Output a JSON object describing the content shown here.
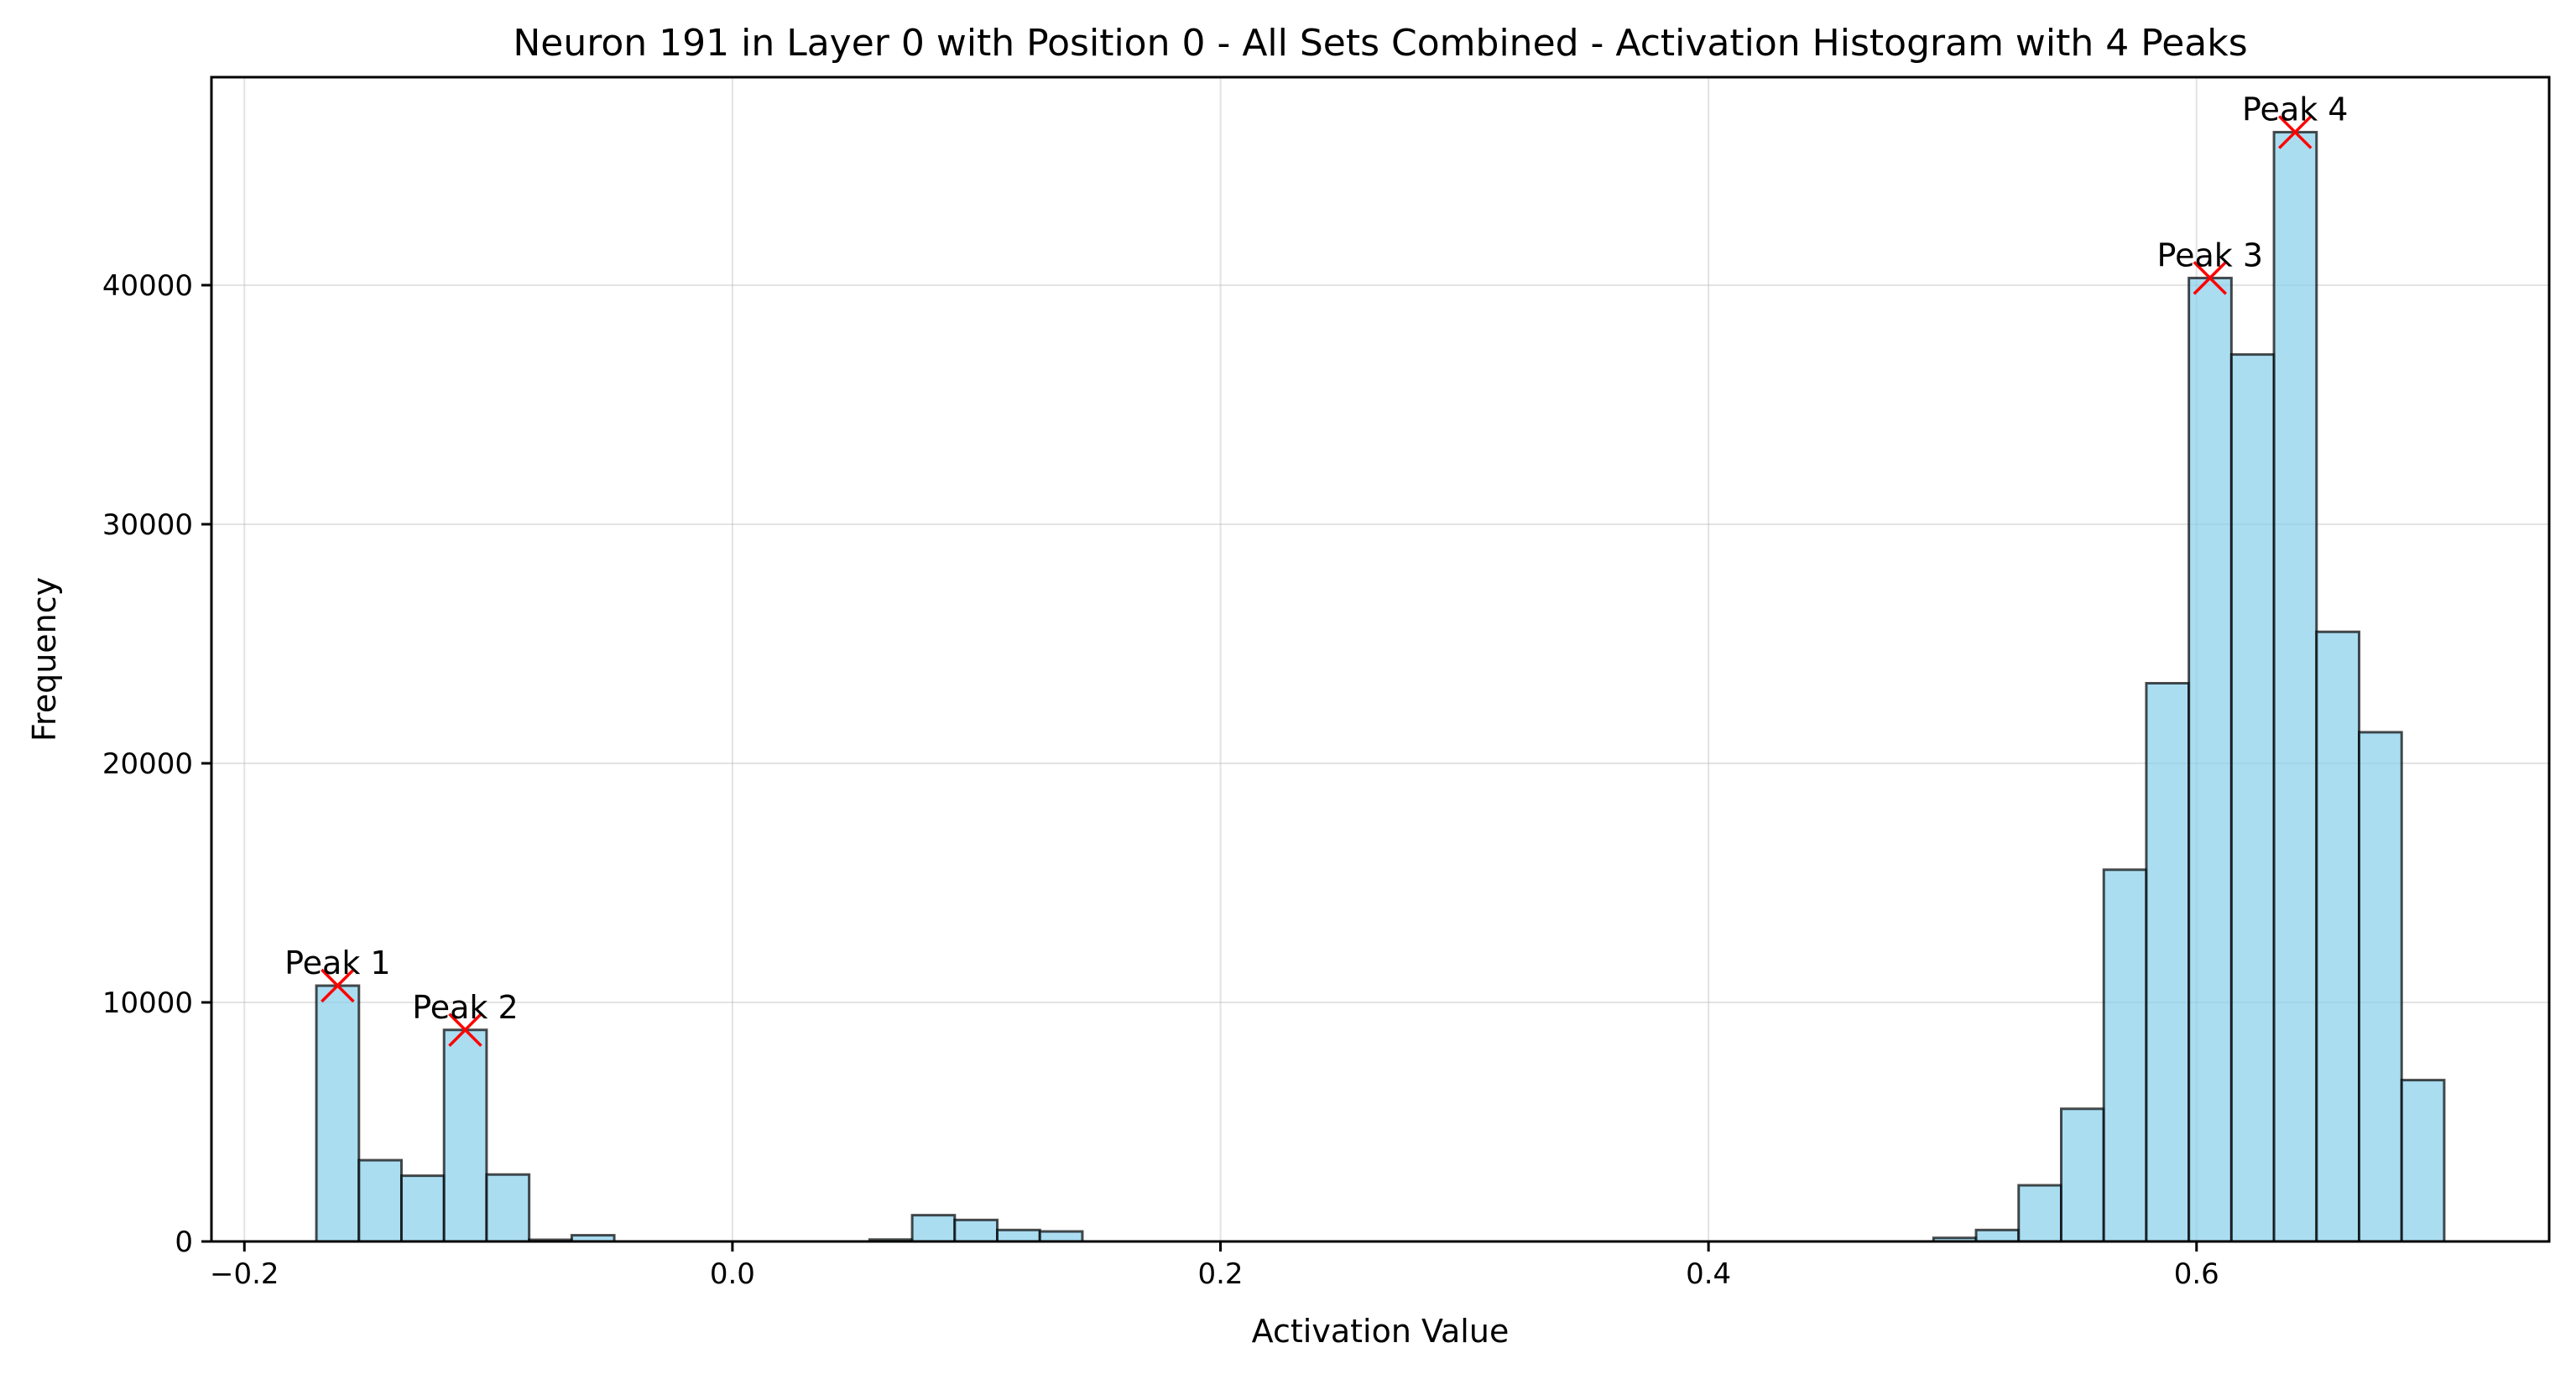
{
  "chart_data": {
    "type": "bar",
    "title": "Neuron 191 in Layer 0 with Position 0 - All Sets Combined - Activation Histogram with 4 Peaks",
    "xlabel": "Activation Value",
    "ylabel": "Frequency",
    "xlim": [
      -0.2135,
      0.7445
    ],
    "ylim": [
      0,
      48700
    ],
    "grid": true,
    "bar_color": "#87ceeb",
    "edge_color": "#000000",
    "marker_color": "#ff0000",
    "x_ticks": [
      {
        "value": -0.2,
        "label": "−0.2"
      },
      {
        "value": 0.0,
        "label": "0.0"
      },
      {
        "value": 0.2,
        "label": "0.2"
      },
      {
        "value": 0.4,
        "label": "0.4"
      },
      {
        "value": 0.6,
        "label": "0.6"
      }
    ],
    "y_ticks": [
      {
        "value": 0,
        "label": "0"
      },
      {
        "value": 10000,
        "label": "10000"
      },
      {
        "value": 20000,
        "label": "20000"
      },
      {
        "value": 30000,
        "label": "30000"
      },
      {
        "value": 40000,
        "label": "40000"
      }
    ],
    "bins": {
      "start": -0.1705,
      "width": 0.01744,
      "counts": [
        10700,
        3400,
        2750,
        8850,
        2800,
        70,
        260,
        0,
        0,
        0,
        0,
        0,
        0,
        80,
        1100,
        900,
        480,
        420,
        0,
        0,
        0,
        0,
        0,
        0,
        0,
        0,
        0,
        0,
        0,
        0,
        0,
        0,
        0,
        0,
        0,
        0,
        0,
        0,
        150,
        480,
        2350,
        5550,
        15550,
        23350,
        40300,
        37100,
        46400,
        25500,
        21300,
        6750
      ]
    },
    "peaks": [
      {
        "label": "Peak 1",
        "x": -0.1618,
        "y": 10700
      },
      {
        "label": "Peak 2",
        "x": -0.1095,
        "y": 8850
      },
      {
        "label": "Peak 3",
        "x": 0.6055,
        "y": 40300
      },
      {
        "label": "Peak 4",
        "x": 0.6404,
        "y": 46400
      }
    ]
  }
}
